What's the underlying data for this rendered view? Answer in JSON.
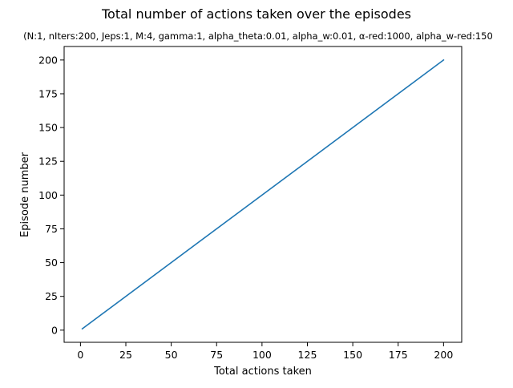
{
  "chart_data": {
    "type": "line",
    "title": "Total number of actions taken over the episodes",
    "subtitle": "(N:1, nIters:200, Jeps:1, M:4, gamma:1, alpha_theta:0.01, alpha_w:0.01, α-red:1000, alpha_w-red:150",
    "xlabel": "Total actions taken",
    "ylabel": "Episode number",
    "xlim": [
      -9,
      210
    ],
    "ylim": [
      -9,
      210
    ],
    "xticks": [
      0,
      25,
      50,
      75,
      100,
      125,
      150,
      175,
      200
    ],
    "yticks": [
      0,
      25,
      50,
      75,
      100,
      125,
      150,
      175,
      200
    ],
    "grid": false,
    "series": [
      {
        "color": "#1f77b4",
        "x": [
          1,
          200
        ],
        "y": [
          1,
          200
        ]
      }
    ]
  }
}
